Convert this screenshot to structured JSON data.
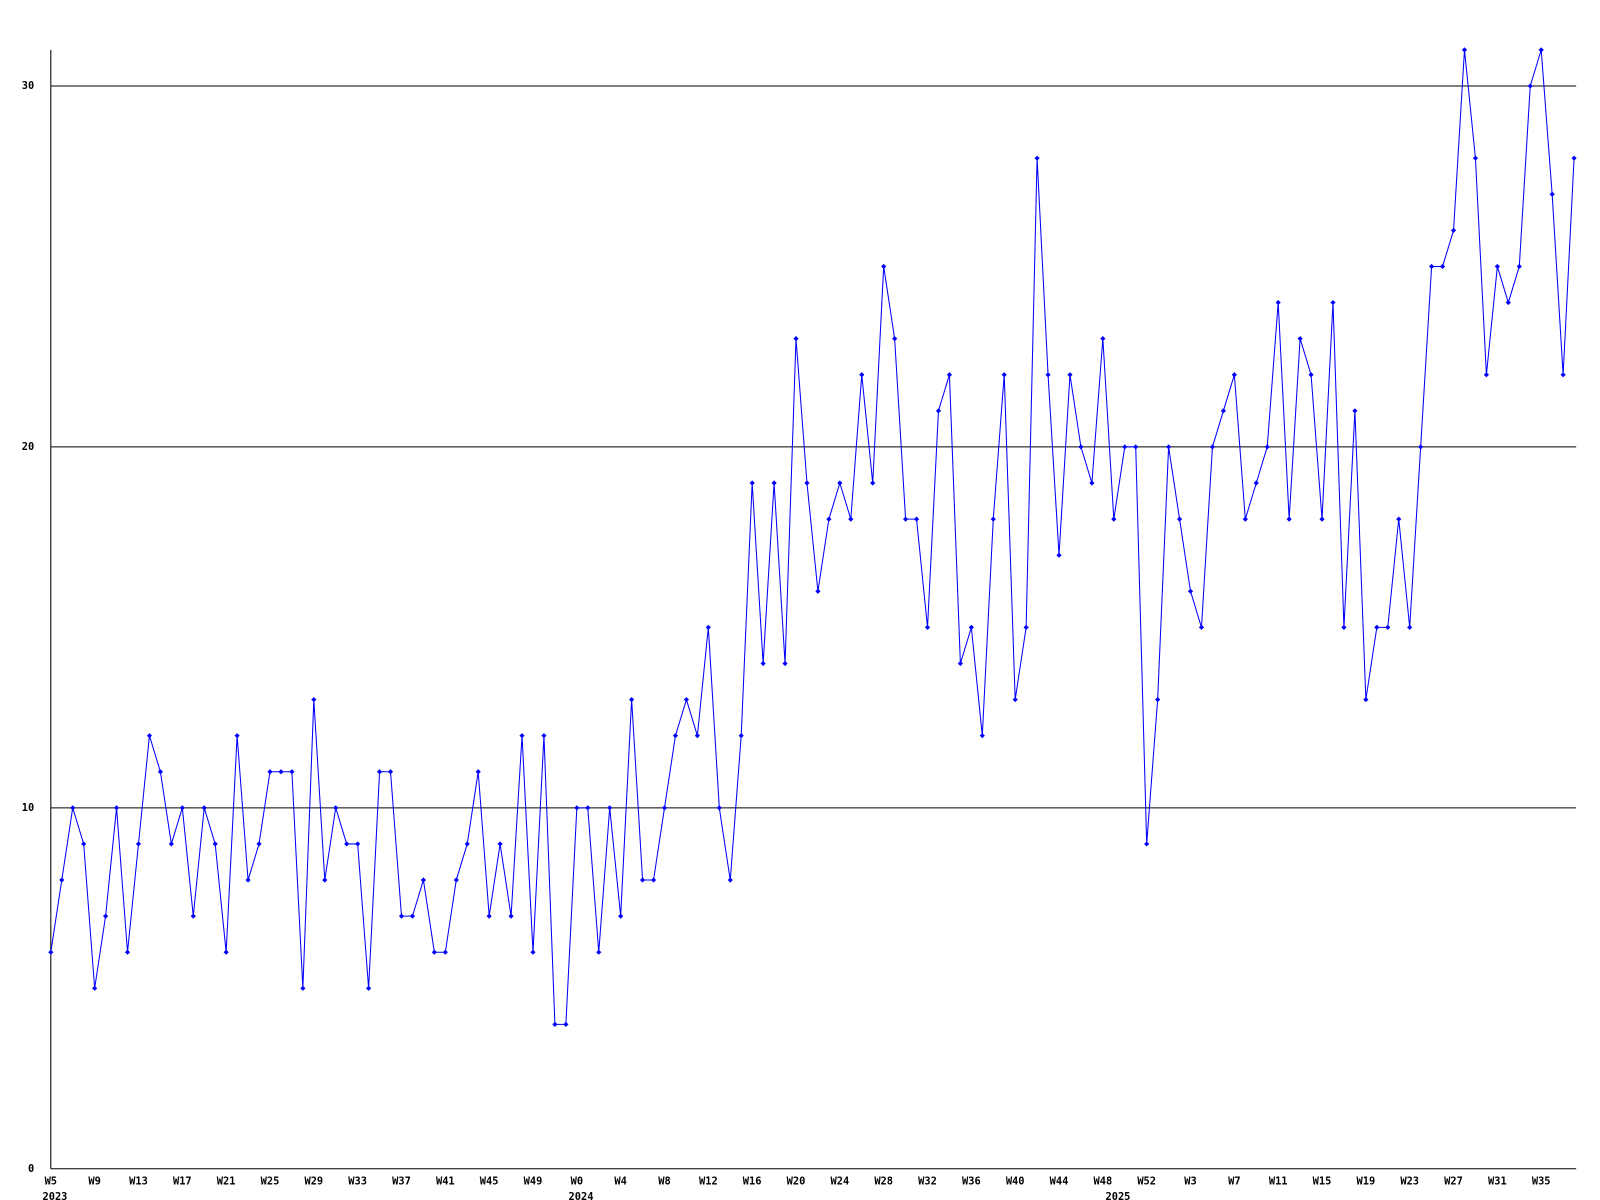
{
  "chart_data": {
    "type": "line",
    "categories": [
      "W5",
      null,
      null,
      null,
      "W9",
      null,
      null,
      null,
      "W13",
      null,
      null,
      null,
      "W17",
      null,
      null,
      null,
      "W21",
      null,
      null,
      null,
      "W25",
      null,
      null,
      null,
      "W29",
      null,
      null,
      null,
      "W33",
      null,
      null,
      null,
      "W37",
      null,
      null,
      null,
      "W41",
      null,
      null,
      null,
      "W45",
      null,
      null,
      null,
      "W49",
      null,
      null,
      null,
      "W0",
      null,
      null,
      null,
      "W4",
      null,
      null,
      null,
      "W8",
      null,
      null,
      null,
      "W12",
      null,
      null,
      null,
      "W16",
      null,
      null,
      null,
      "W20",
      null,
      null,
      null,
      "W24",
      null,
      null,
      null,
      "W28",
      null,
      null,
      null,
      "W32",
      null,
      null,
      null,
      "W36",
      null,
      null,
      null,
      "W40",
      null,
      null,
      null,
      "W44",
      null,
      null,
      null,
      "W48",
      null,
      null,
      null,
      "W52",
      null,
      null,
      null,
      "W3",
      null,
      null,
      null,
      "W7",
      null,
      null,
      null,
      "W11",
      null,
      null,
      null,
      "W15",
      null,
      null,
      null,
      "W19",
      null,
      null,
      null,
      "W23",
      null,
      null,
      null,
      "W27",
      null,
      null,
      null,
      "W31",
      null,
      null,
      null,
      "W35",
      null,
      null,
      null
    ],
    "year_labels": [
      "2023",
      null,
      null,
      null,
      null,
      null,
      null,
      null,
      null,
      null,
      null,
      null,
      null,
      null,
      null,
      null,
      null,
      null,
      null,
      null,
      null,
      null,
      null,
      null,
      null,
      null,
      null,
      null,
      null,
      null,
      null,
      null,
      null,
      null,
      null,
      null,
      null,
      null,
      null,
      null,
      null,
      null,
      null,
      null,
      null,
      null,
      null,
      null,
      "2024",
      null,
      null,
      null,
      null,
      null,
      null,
      null,
      null,
      null,
      null,
      null,
      null,
      null,
      null,
      null,
      null,
      null,
      null,
      null,
      null,
      null,
      null,
      null,
      null,
      null,
      null,
      null,
      null,
      null,
      null,
      null,
      null,
      null,
      null,
      null,
      null,
      null,
      null,
      null,
      null,
      null,
      null,
      null,
      null,
      null,
      null,
      null,
      null,
      "2025",
      null,
      null,
      null,
      null,
      null,
      null,
      null,
      null,
      null,
      null,
      null,
      null,
      null,
      null,
      null,
      null,
      null,
      null,
      null,
      null,
      null,
      null,
      null,
      null,
      null,
      null,
      null,
      null,
      null,
      null,
      null,
      null,
      null,
      null,
      null,
      null,
      null,
      null
    ],
    "series": [
      {
        "color": "#0000ff",
        "values": [
          6,
          8,
          10,
          9,
          5,
          7,
          10,
          6,
          9,
          12,
          11,
          9,
          10,
          7,
          10,
          9,
          6,
          12,
          8,
          9,
          11,
          11,
          11,
          5,
          13,
          8,
          10,
          9,
          9,
          5,
          11,
          11,
          7,
          7,
          8,
          6,
          6,
          8,
          9,
          11,
          7,
          9,
          7,
          12,
          6,
          12,
          4,
          4,
          10,
          10,
          6,
          10,
          7,
          13,
          8,
          8,
          10,
          12,
          13,
          12,
          15,
          10,
          8,
          12,
          19,
          14,
          19,
          14,
          23,
          19,
          16,
          18,
          19,
          18,
          22,
          19,
          25,
          23,
          18,
          18,
          15,
          21,
          22,
          14,
          15,
          12,
          18,
          22,
          13,
          15,
          28,
          22,
          17,
          22,
          20,
          19,
          23,
          18,
          20,
          20,
          9,
          13,
          20,
          18,
          16,
          15,
          20,
          21,
          22,
          18,
          19,
          20,
          24,
          18,
          23,
          22,
          18,
          24,
          15,
          21,
          13,
          15,
          15,
          18,
          15,
          20,
          25,
          25,
          26,
          31,
          28,
          22,
          25,
          24,
          25,
          30,
          31,
          27,
          22,
          28
        ]
      }
    ],
    "ylim": [
      0,
      31
    ],
    "yticks": [
      0,
      10,
      20,
      30
    ],
    "grid": true
  }
}
